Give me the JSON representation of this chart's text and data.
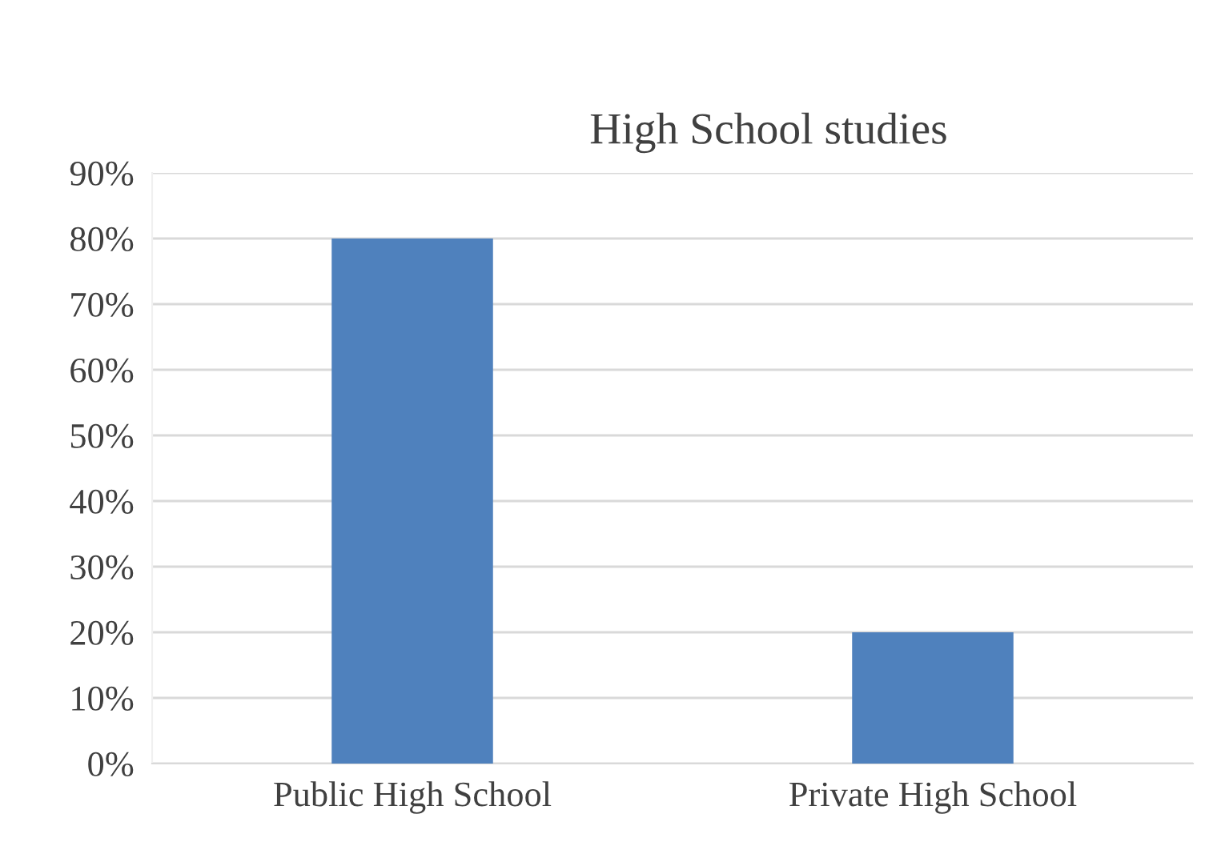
{
  "chart_data": {
    "type": "bar",
    "title": "High School studies",
    "categories": [
      "Public High School",
      "Private High School"
    ],
    "values": [
      80,
      20
    ],
    "color": "#4f81bd",
    "ylim": [
      0,
      90
    ],
    "yticks": [
      {
        "value": 0,
        "label": "0%"
      },
      {
        "value": 10,
        "label": "10%"
      },
      {
        "value": 20,
        "label": "20%"
      },
      {
        "value": 30,
        "label": "30%"
      },
      {
        "value": 40,
        "label": "40%"
      },
      {
        "value": 50,
        "label": "50%"
      },
      {
        "value": 60,
        "label": "60%"
      },
      {
        "value": 70,
        "label": "70%"
      },
      {
        "value": 80,
        "label": "80%"
      },
      {
        "value": 90,
        "label": "90%"
      }
    ],
    "grid": "y",
    "legend": false
  }
}
